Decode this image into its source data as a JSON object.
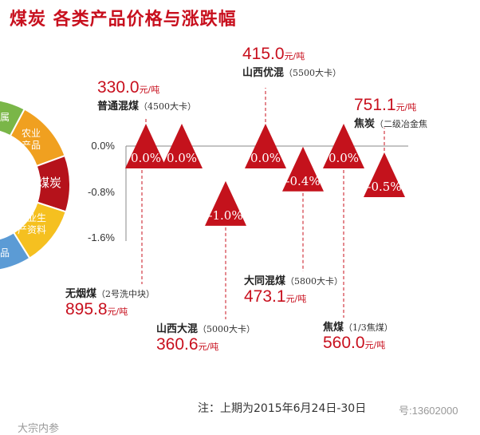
{
  "title": "煤炭 各类产品价格与涨跌幅",
  "wheel": {
    "segments": [
      {
        "label": "农业\n产品",
        "color": "#f0a020"
      },
      {
        "label": "煤炭",
        "color": "#b5121b"
      },
      {
        "label": "农业生\n产资料",
        "color": "#f5c020"
      },
      {
        "label": "",
        "color": "#5b9bd5"
      },
      {
        "label": "",
        "color": "#7ab648"
      }
    ],
    "edge_labels": [
      "品",
      "属"
    ]
  },
  "chart_data": {
    "type": "triangle-markers",
    "title": "煤炭 各类产品价格与涨跌幅",
    "ylim": [
      -1.6,
      0.0
    ],
    "yticks": [
      0.0,
      -0.8,
      -1.6
    ],
    "ytick_labels": [
      "0.0%",
      "-0.8%",
      "-1.6%"
    ],
    "points": [
      {
        "order": 1,
        "value": 0.0,
        "label": "0.0%",
        "name": "普通混煤",
        "spec": "（4500大卡）",
        "price": "330.0",
        "unit": "元/吨"
      },
      {
        "order": 2,
        "value": 0.0,
        "label": "0.0%",
        "name": "无烟煤",
        "spec": "（2号洗中块）",
        "price": "895.8",
        "unit": "元/吨"
      },
      {
        "order": 3,
        "value": -1.0,
        "label": "-1.0%",
        "name": "山西大混",
        "spec": "（5000大卡）",
        "price": "360.6",
        "unit": "元/吨"
      },
      {
        "order": 4,
        "value": 0.0,
        "label": "0.0%",
        "name": "山西优混",
        "spec": "（5500大卡）",
        "price": "415.0",
        "unit": "元/吨"
      },
      {
        "order": 5,
        "value": -0.4,
        "label": "-0.4%",
        "name": "大同混煤",
        "spec": "（5800大卡）",
        "price": "473.1",
        "unit": "元/吨"
      },
      {
        "order": 6,
        "value": 0.0,
        "label": "0.0%",
        "name": "焦煤",
        "spec": "（1/3焦煤）",
        "price": "560.0",
        "unit": "元/吨"
      },
      {
        "order": 7,
        "value": -0.5,
        "label": "-0.5%",
        "name": "焦炭",
        "spec": "（二级冶金焦",
        "price": "751.1",
        "unit": "元/吨"
      }
    ]
  },
  "note": "注：上期为2015年6月24日-30日",
  "watermarks": {
    "bottom_left": "大宗内参",
    "bottom_right": "号:13602000"
  },
  "colors": {
    "accent": "#c8101e",
    "triangle": "#c4121c"
  }
}
